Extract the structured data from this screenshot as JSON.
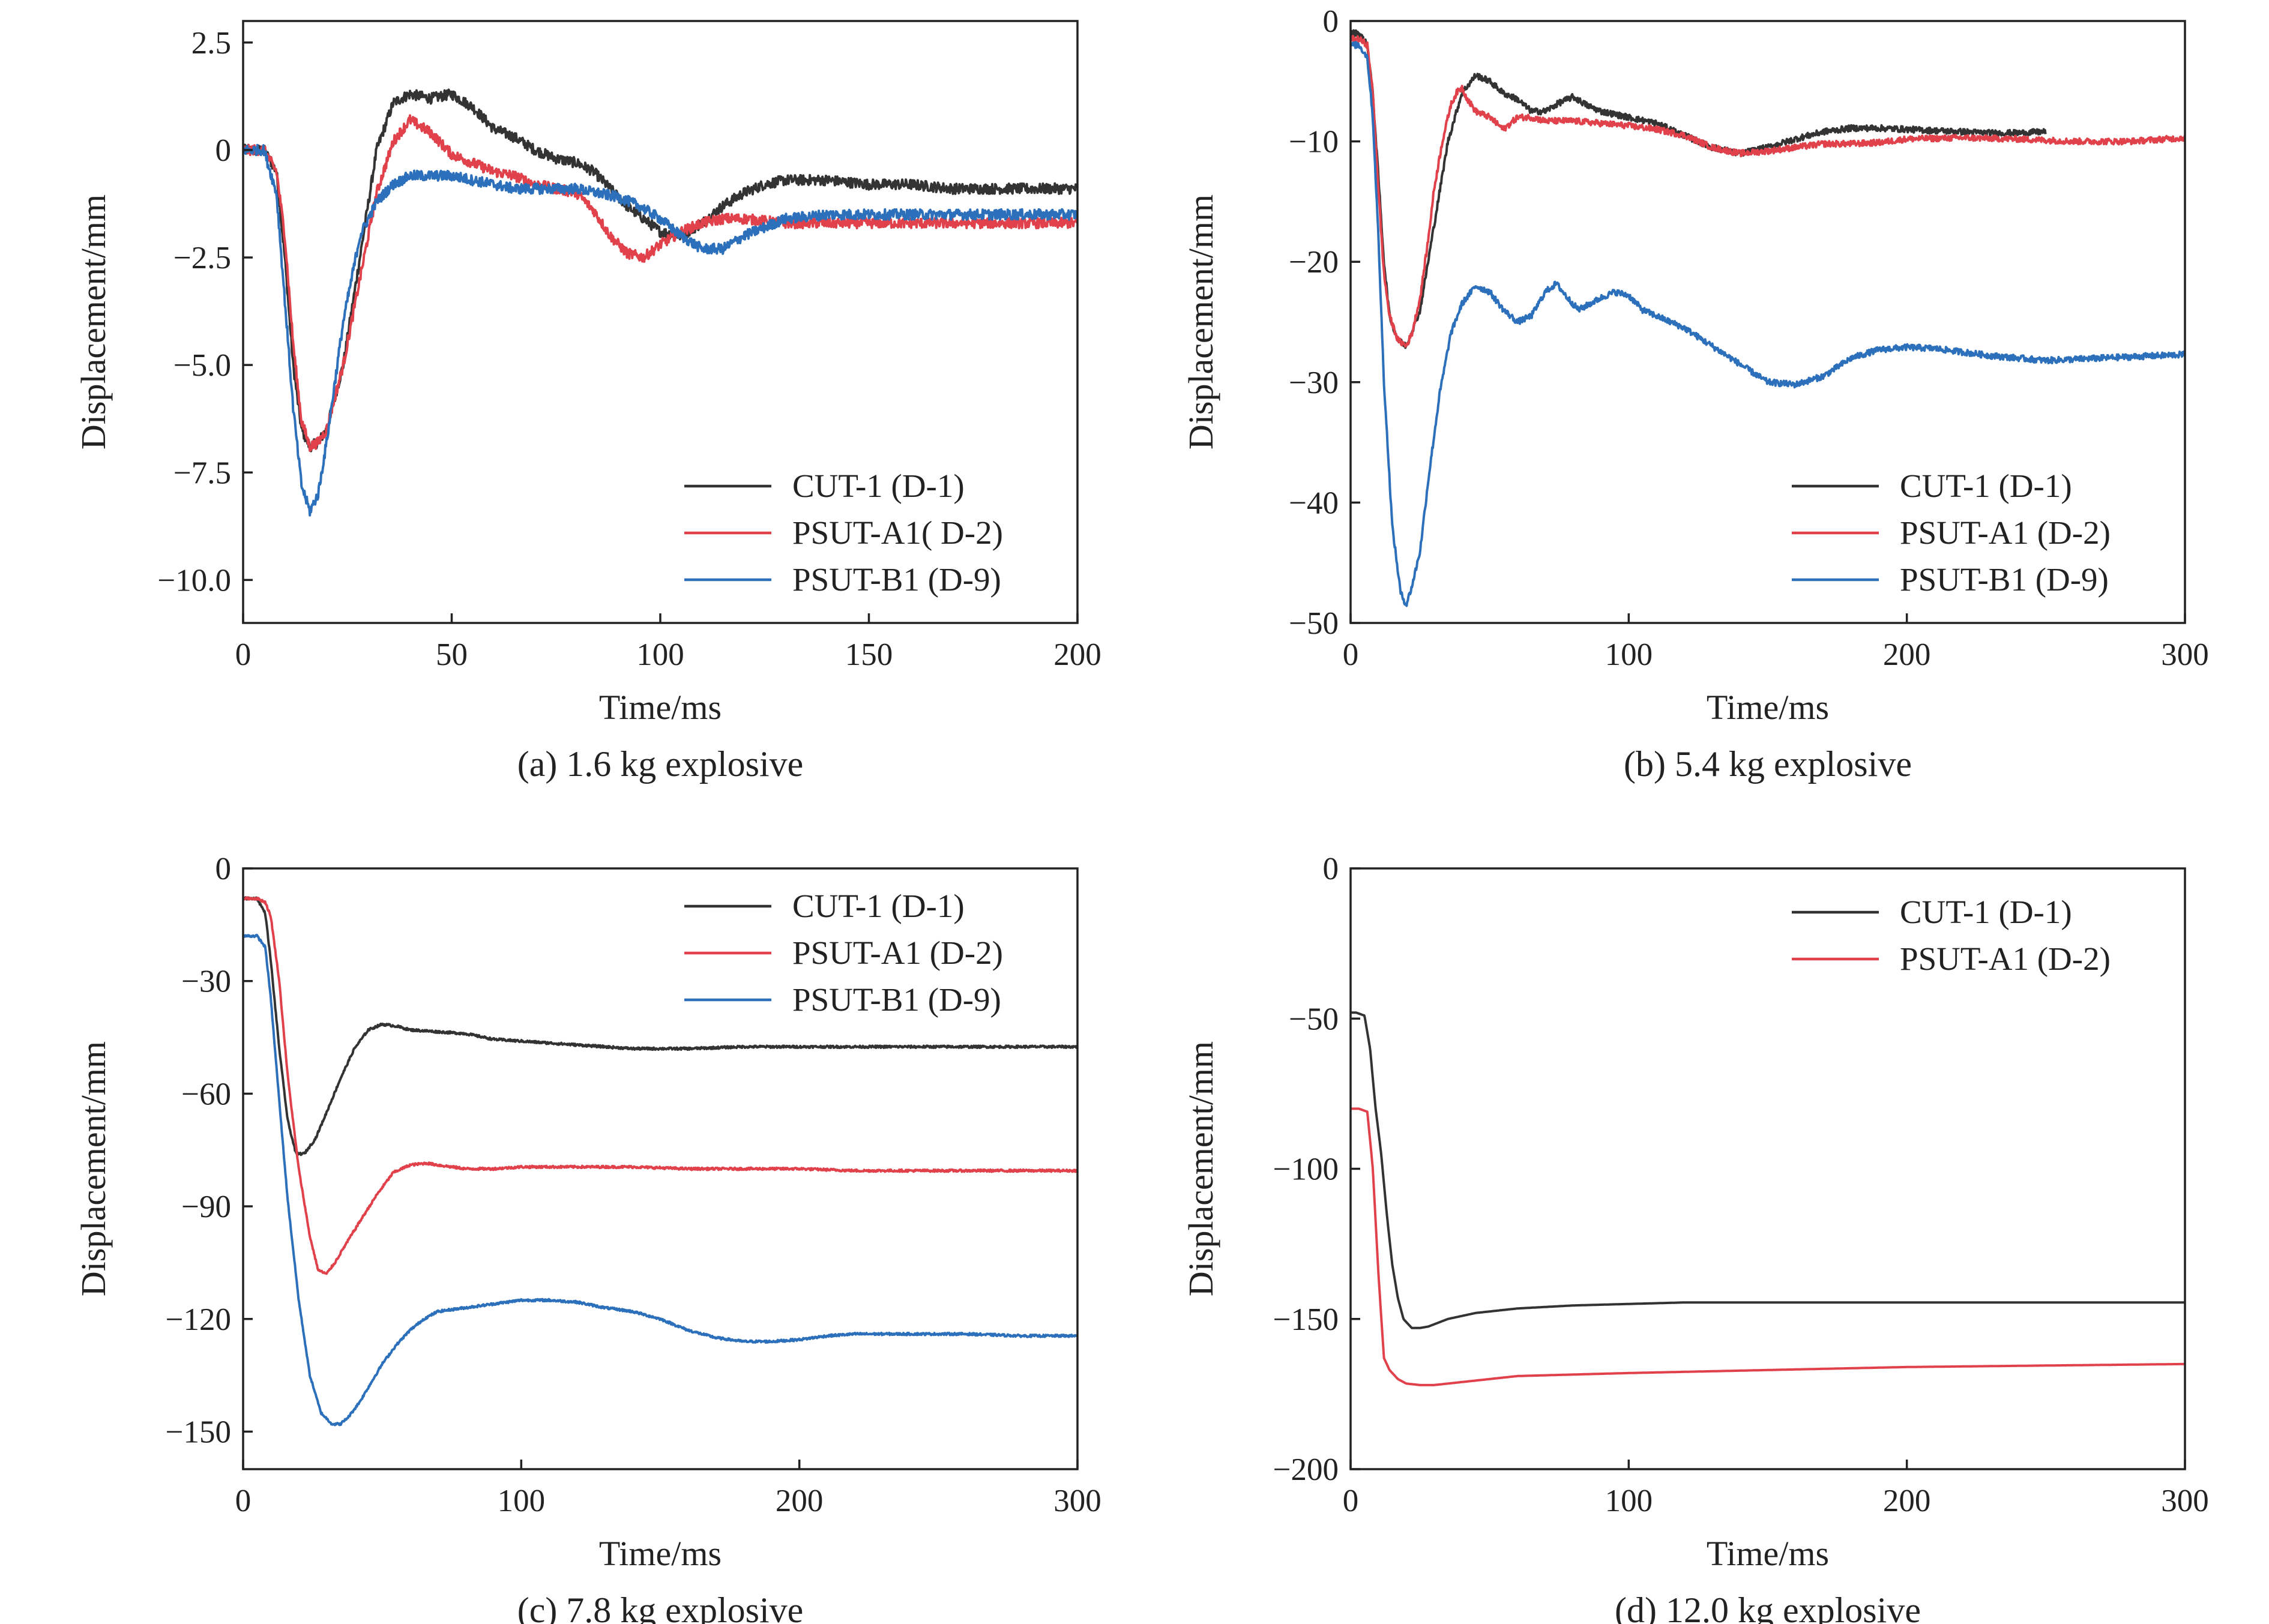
{
  "chart_data": [
    {
      "type": "line",
      "caption": "(a) 1.6 kg explosive",
      "xlabel": "Time/ms",
      "ylabel": "Displacement/mm",
      "xlim": [
        0,
        200
      ],
      "ylim": [
        -11,
        3
      ],
      "xticks": [
        0,
        50,
        100,
        150,
        200
      ],
      "xtick_labels": [
        "0",
        "50",
        "100",
        "150",
        "200"
      ],
      "yticks": [
        2.5,
        0,
        -2.5,
        -5.0,
        -7.5,
        -10.0
      ],
      "ytick_labels": [
        "2.5",
        "0",
        "−2.5",
        "−5.0",
        "−7.5",
        "−10.0"
      ],
      "grid": false,
      "legend_position": "bottom-right",
      "noise": 0.12,
      "series": [
        {
          "name": "CUT-1 (D-1)",
          "color": "#333333",
          "x": [
            0,
            5,
            8,
            10,
            12,
            14,
            16,
            18,
            20,
            24,
            28,
            32,
            36,
            40,
            45,
            50,
            55,
            60,
            65,
            70,
            75,
            80,
            84,
            88,
            92,
            96,
            100,
            105,
            110,
            115,
            120,
            125,
            130,
            140,
            150,
            160,
            170,
            180,
            190,
            200
          ],
          "y": [
            0,
            0,
            -0.5,
            -2.5,
            -5.0,
            -6.5,
            -6.9,
            -6.8,
            -6.5,
            -5.0,
            -2.5,
            0.0,
            1.1,
            1.3,
            1.2,
            1.3,
            1.0,
            0.5,
            0.3,
            0.0,
            -0.2,
            -0.3,
            -0.5,
            -0.9,
            -1.3,
            -1.6,
            -1.9,
            -2.0,
            -1.7,
            -1.3,
            -1.0,
            -0.8,
            -0.7,
            -0.7,
            -0.8,
            -0.8,
            -0.9,
            -0.9,
            -0.9,
            -0.9
          ]
        },
        {
          "name": "PSUT-A1( D-2)",
          "color": "#e0414b",
          "x": [
            0,
            5,
            8,
            10,
            12,
            14,
            16,
            18,
            20,
            24,
            28,
            32,
            36,
            40,
            45,
            50,
            55,
            60,
            65,
            70,
            75,
            80,
            84,
            88,
            92,
            96,
            100,
            105,
            110,
            115,
            120,
            130,
            140,
            150,
            160,
            170,
            180,
            190,
            200
          ],
          "y": [
            0,
            0,
            -0.5,
            -2.0,
            -4.5,
            -6.3,
            -6.9,
            -6.8,
            -6.5,
            -5.0,
            -3.0,
            -1.0,
            0.2,
            0.7,
            0.4,
            -0.1,
            -0.3,
            -0.5,
            -0.6,
            -0.8,
            -0.9,
            -1.0,
            -1.4,
            -2.0,
            -2.4,
            -2.5,
            -2.2,
            -1.9,
            -1.7,
            -1.6,
            -1.6,
            -1.7,
            -1.7,
            -1.7,
            -1.7,
            -1.7,
            -1.7,
            -1.7,
            -1.7
          ]
        },
        {
          "name": "PSUT-B1 (D-9)",
          "color": "#2c6fba",
          "x": [
            0,
            5,
            8,
            10,
            12,
            14,
            16,
            18,
            20,
            24,
            28,
            32,
            36,
            40,
            45,
            50,
            55,
            60,
            65,
            70,
            75,
            80,
            85,
            90,
            95,
            100,
            105,
            110,
            115,
            120,
            125,
            130,
            140,
            150,
            160,
            170,
            180,
            190,
            200
          ],
          "y": [
            0,
            0,
            -1.0,
            -3.5,
            -6.0,
            -7.8,
            -8.4,
            -8.0,
            -6.8,
            -4.0,
            -2.0,
            -1.2,
            -0.8,
            -0.6,
            -0.6,
            -0.6,
            -0.7,
            -0.8,
            -0.9,
            -0.9,
            -0.9,
            -0.9,
            -1.0,
            -1.1,
            -1.3,
            -1.6,
            -2.0,
            -2.3,
            -2.3,
            -2.0,
            -1.8,
            -1.6,
            -1.5,
            -1.5,
            -1.5,
            -1.5,
            -1.5,
            -1.5,
            -1.5
          ]
        }
      ]
    },
    {
      "type": "line",
      "caption": "(b) 5.4 kg explosive",
      "xlabel": "Time/ms",
      "ylabel": "Displacement/mm",
      "xlim": [
        0,
        300
      ],
      "ylim": [
        -50,
        0
      ],
      "xticks": [
        0,
        100,
        200,
        300
      ],
      "xtick_labels": [
        "0",
        "100",
        "200",
        "300"
      ],
      "yticks": [
        0,
        -10,
        -20,
        -30,
        -40,
        -50
      ],
      "ytick_labels": [
        "0",
        "−10",
        "−20",
        "−30",
        "−40",
        "−50"
      ],
      "grid": false,
      "legend_position": "bottom-right",
      "noise": 0.25,
      "series": [
        {
          "name": "CUT-1 (D-1)",
          "color": "#333333",
          "x": [
            0,
            3,
            6,
            8,
            10,
            12,
            14,
            17,
            20,
            25,
            30,
            35,
            40,
            45,
            50,
            55,
            60,
            65,
            70,
            75,
            80,
            85,
            90,
            100,
            110,
            120,
            130,
            140,
            150,
            160,
            170,
            180,
            190,
            200,
            210,
            220,
            230,
            240,
            250
          ],
          "y": [
            -1,
            -1,
            -2,
            -6,
            -13,
            -20,
            -24.5,
            -26.5,
            -27,
            -24,
            -17,
            -10,
            -6,
            -4.5,
            -5,
            -6,
            -6.5,
            -7.5,
            -7.5,
            -6.8,
            -6.3,
            -7,
            -7.5,
            -8,
            -8.5,
            -9.5,
            -10.5,
            -11,
            -10.5,
            -9.8,
            -9.2,
            -8.9,
            -8.9,
            -9,
            -9.1,
            -9.2,
            -9.3,
            -9.3,
            -9.2
          ]
        },
        {
          "name": "PSUT-A1 (D-2)",
          "color": "#e0414b",
          "x": [
            0,
            3,
            6,
            8,
            10,
            12,
            14,
            17,
            20,
            22,
            25,
            28,
            30,
            33,
            36,
            38,
            40,
            42,
            45,
            50,
            55,
            60,
            65,
            70,
            80,
            90,
            100,
            110,
            120,
            130,
            140,
            150,
            160,
            170,
            180,
            190,
            200,
            220,
            240,
            260,
            280,
            300
          ],
          "y": [
            -1.5,
            -1.5,
            -2,
            -6,
            -14,
            -21,
            -24.5,
            -26.5,
            -27,
            -26,
            -23,
            -18,
            -14,
            -10,
            -7,
            -6,
            -5.5,
            -6.5,
            -7.5,
            -8,
            -9,
            -8,
            -8,
            -8.3,
            -8.3,
            -8.5,
            -8.7,
            -9,
            -9.5,
            -10.5,
            -11,
            -10.8,
            -10.5,
            -10.2,
            -10.2,
            -10.1,
            -9.8,
            -9.7,
            -9.8,
            -10,
            -10,
            -9.7
          ]
        },
        {
          "name": "PSUT-B1 (D-9)",
          "color": "#2c6fba",
          "x": [
            0,
            3,
            6,
            8,
            10,
            12,
            15,
            18,
            20,
            22,
            25,
            28,
            32,
            36,
            40,
            45,
            50,
            55,
            60,
            65,
            70,
            74,
            78,
            82,
            86,
            90,
            95,
            100,
            105,
            110,
            120,
            130,
            140,
            150,
            160,
            170,
            180,
            190,
            200,
            210,
            220,
            230,
            240,
            250,
            260,
            270,
            280,
            290,
            300
          ],
          "y": [
            -2,
            -2,
            -3,
            -8,
            -18,
            -30,
            -42,
            -47.5,
            -48.5,
            -47,
            -44,
            -38,
            -31,
            -26,
            -23.5,
            -22,
            -22.5,
            -24,
            -25,
            -24.5,
            -22.5,
            -21.8,
            -23,
            -24,
            -23.5,
            -23,
            -22.5,
            -22.8,
            -24,
            -24.5,
            -25.5,
            -27,
            -28.5,
            -30,
            -30.2,
            -29.5,
            -28,
            -27.3,
            -27.1,
            -27.2,
            -27.5,
            -27.8,
            -28,
            -28.2,
            -28.1,
            -28,
            -27.9,
            -27.8,
            -27.7
          ]
        }
      ]
    },
    {
      "type": "line",
      "caption": "(c) 7.8 kg explosive",
      "xlabel": "Time/ms",
      "ylabel": "Displacement/mm",
      "xlim": [
        0,
        300
      ],
      "ylim": [
        -160,
        0
      ],
      "xticks": [
        0,
        100,
        200,
        300
      ],
      "xtick_labels": [
        "0",
        "100",
        "200",
        "300"
      ],
      "yticks": [
        0,
        -30,
        -60,
        -90,
        -120,
        -150
      ],
      "ytick_labels": [
        "0",
        "−30",
        "−60",
        "−90",
        "−120",
        "−150"
      ],
      "grid": false,
      "legend_position": "top-right",
      "noise": 0.3,
      "series": [
        {
          "name": "CUT-1 (D-1)",
          "color": "#333333",
          "x": [
            0,
            5,
            8,
            10,
            13,
            16,
            19,
            22,
            26,
            30,
            35,
            40,
            45,
            50,
            55,
            60,
            70,
            80,
            90,
            100,
            120,
            140,
            160,
            180,
            200,
            220,
            250,
            280,
            300
          ],
          "y": [
            -8,
            -8,
            -12,
            -25,
            -48,
            -67,
            -76,
            -76,
            -72,
            -65,
            -56,
            -48,
            -43,
            -41.5,
            -42,
            -43,
            -43.5,
            -44,
            -45.5,
            -46,
            -47,
            -48,
            -48,
            -47.5,
            -47.5,
            -47.5,
            -47.5,
            -47.5,
            -47.5
          ]
        },
        {
          "name": "PSUT-A1 (D-2)",
          "color": "#e0414b",
          "x": [
            0,
            5,
            8,
            10,
            13,
            16,
            20,
            24,
            27,
            30,
            33,
            37,
            42,
            48,
            54,
            60,
            66,
            70,
            80,
            90,
            100,
            120,
            140,
            160,
            180,
            200,
            220,
            250,
            280,
            300
          ],
          "y": [
            -8,
            -8,
            -9,
            -13,
            -30,
            -55,
            -80,
            -98,
            -107,
            -108,
            -105,
            -100,
            -94,
            -87,
            -81,
            -79,
            -78.5,
            -79,
            -80,
            -80,
            -79.5,
            -79.5,
            -79.5,
            -80,
            -80,
            -80,
            -80.5,
            -80.5,
            -80.5,
            -80.5
          ]
        },
        {
          "name": "PSUT-B1 (D-9)",
          "color": "#2c6fba",
          "x": [
            0,
            5,
            8,
            10,
            13,
            16,
            20,
            24,
            28,
            32,
            35,
            38,
            42,
            46,
            50,
            55,
            60,
            65,
            70,
            80,
            90,
            100,
            110,
            120,
            130,
            140,
            150,
            160,
            170,
            180,
            190,
            200,
            210,
            220,
            240,
            260,
            280,
            300
          ],
          "y": [
            -18,
            -18,
            -21,
            -35,
            -62,
            -88,
            -115,
            -135,
            -145,
            -148,
            -148,
            -146,
            -142,
            -137,
            -132,
            -127,
            -123,
            -120,
            -118,
            -117,
            -116,
            -115,
            -115,
            -115.5,
            -117,
            -118,
            -120,
            -123,
            -125,
            -126,
            -126,
            -125.5,
            -124.5,
            -124,
            -124,
            -124,
            -124.5,
            -124.5
          ]
        }
      ]
    },
    {
      "type": "line",
      "caption": "(d) 12.0 kg explosive",
      "xlabel": "Time/ms",
      "ylabel": "Displacement/mm",
      "xlim": [
        0,
        300
      ],
      "ylim": [
        -200,
        0
      ],
      "xticks": [
        0,
        100,
        200,
        300
      ],
      "xtick_labels": [
        "0",
        "100",
        "200",
        "300"
      ],
      "yticks": [
        0,
        -50,
        -100,
        -150,
        -200
      ],
      "ytick_labels": [
        "0",
        "−50",
        "−100",
        "−150",
        "−200"
      ],
      "grid": false,
      "legend_position": "top-right",
      "noise": 0,
      "series": [
        {
          "name": "CUT-1 (D-1)",
          "color": "#333333",
          "x": [
            0,
            2,
            5,
            7,
            9,
            11,
            13,
            15,
            17,
            19,
            22,
            25,
            28,
            35,
            45,
            60,
            80,
            100,
            120,
            150,
            200,
            250,
            300
          ],
          "y": [
            -48,
            -48,
            -49,
            -60,
            -80,
            -95,
            -115,
            -132,
            -143,
            -150,
            -153,
            -153,
            -152.5,
            -150,
            -148,
            -146.5,
            -145.5,
            -145,
            -144.5,
            -144.5,
            -144.5,
            -144.5,
            -144.5
          ]
        },
        {
          "name": "PSUT-A1 (D-2)",
          "color": "#e0414b",
          "x": [
            0,
            3,
            6,
            8,
            10,
            12,
            14,
            17,
            20,
            25,
            30,
            40,
            50,
            60,
            80,
            100,
            150,
            200,
            250,
            300
          ],
          "y": [
            -80,
            -80,
            -81,
            -100,
            -135,
            -163,
            -167,
            -170,
            -171.5,
            -172,
            -172,
            -171,
            -170,
            -169,
            -168.5,
            -168,
            -167,
            -166,
            -165.5,
            -165
          ]
        }
      ]
    }
  ]
}
